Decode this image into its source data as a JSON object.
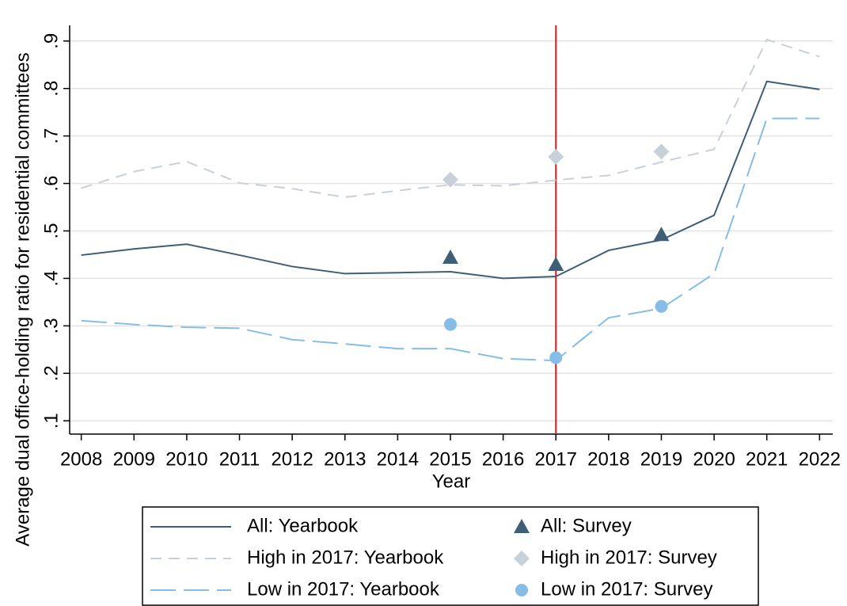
{
  "chart_data": {
    "type": "line",
    "x_label": "Year",
    "y_label": "Average dual office-holding ratio for residential committees",
    "x": [
      2008,
      2009,
      2010,
      2011,
      2012,
      2013,
      2014,
      2015,
      2016,
      2017,
      2018,
      2019,
      2020,
      2021,
      2022
    ],
    "xlim": [
      2007.78,
      2022.25
    ],
    "xticks": [
      2008,
      2009,
      2010,
      2011,
      2012,
      2013,
      2014,
      2015,
      2016,
      2017,
      2018,
      2019,
      2020,
      2021,
      2022
    ],
    "ylim": [
      0.072,
      0.933
    ],
    "yticks": [
      {
        "value": 0.1,
        "label": ".1"
      },
      {
        "value": 0.2,
        "label": ".2"
      },
      {
        "value": 0.3,
        "label": ".3"
      },
      {
        "value": 0.4,
        "label": ".4"
      },
      {
        "value": 0.5,
        "label": ".5"
      },
      {
        "value": 0.6,
        "label": ".6"
      },
      {
        "value": 0.7,
        "label": ".7"
      },
      {
        "value": 0.8,
        "label": ".8"
      },
      {
        "value": 0.9,
        "label": ".9"
      }
    ],
    "grid": true,
    "vline": {
      "x": 2017,
      "color": "#e31a1c"
    },
    "series": [
      {
        "name": "All: Yearbook",
        "kind": "line",
        "line_style": "solid",
        "color": "#3e5f75",
        "values": [
          0.449,
          0.462,
          0.472,
          0.449,
          0.425,
          0.41,
          0.412,
          0.414,
          0.4,
          0.404,
          0.459,
          0.481,
          0.533,
          0.815,
          0.798
        ]
      },
      {
        "name": "High in 2017: Yearbook",
        "kind": "line",
        "line_style": "dash",
        "color": "#c8d0d9",
        "values": [
          0.59,
          0.625,
          0.646,
          0.601,
          0.589,
          0.571,
          0.585,
          0.597,
          0.595,
          0.607,
          0.617,
          0.645,
          0.672,
          0.903,
          0.867
        ]
      },
      {
        "name": "Low in 2017: Yearbook",
        "kind": "line",
        "line_style": "longdash",
        "color": "#85bde6",
        "values": [
          0.311,
          0.303,
          0.297,
          0.295,
          0.271,
          0.262,
          0.252,
          0.252,
          0.231,
          0.227,
          0.317,
          0.337,
          0.41,
          0.737,
          0.737
        ]
      },
      {
        "name": "All: Survey",
        "kind": "points",
        "marker": "triangle",
        "color": "#3e5f75",
        "x": [
          2015,
          2017,
          2019
        ],
        "values": [
          0.444,
          0.429,
          0.492
        ]
      },
      {
        "name": "High in 2017: Survey",
        "kind": "points",
        "marker": "diamond",
        "color": "#c8d0d9",
        "x": [
          2015,
          2017,
          2019
        ],
        "values": [
          0.608,
          0.656,
          0.667
        ]
      },
      {
        "name": "Low in 2017: Survey",
        "kind": "points",
        "marker": "circle",
        "color": "#85bde6",
        "x": [
          2015,
          2017,
          2019
        ],
        "values": [
          0.303,
          0.233,
          0.341
        ]
      }
    ]
  }
}
